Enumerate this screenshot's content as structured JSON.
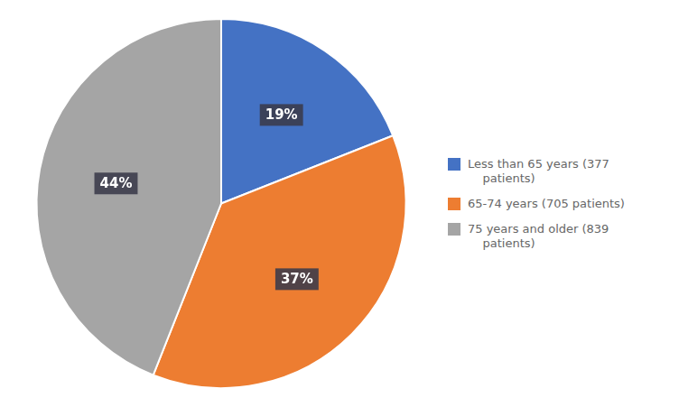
{
  "chart_data": {
    "type": "pie",
    "categories": [
      "Less than 65 years (377\n    patients)",
      "65-74 years (705 patients)",
      "75 years and older (839\n    patients)"
    ],
    "values": [
      19,
      37,
      44
    ],
    "value_labels": [
      "19%",
      "37%",
      "44%"
    ],
    "colors": [
      "#4472C4",
      "#ED7D31",
      "#A5A5A5"
    ],
    "data_labels": true,
    "legend": "right"
  }
}
